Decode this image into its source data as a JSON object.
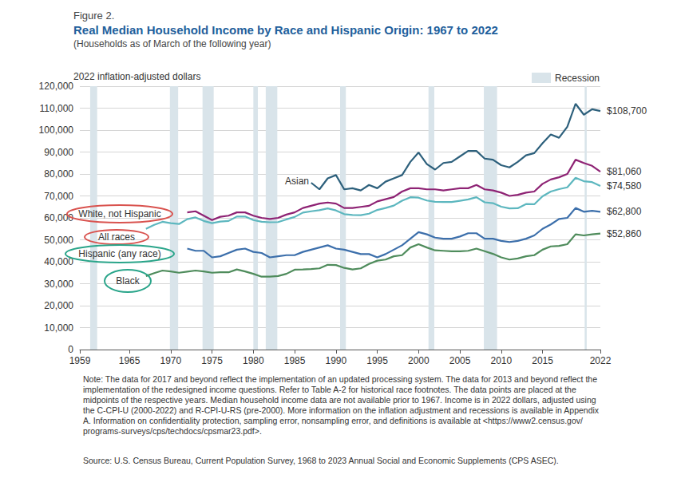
{
  "chart_data": {
    "type": "line",
    "figure_label": "Figure 2.",
    "title": "Real Median Household Income by Race and Hispanic Origin: 1967 to 2022",
    "subtitle": "(Households as of March of the following year)",
    "y_label": "2022 inflation-adjusted dollars",
    "x": [
      1967,
      1968,
      1969,
      1970,
      1971,
      1972,
      1973,
      1974,
      1975,
      1976,
      1977,
      1978,
      1979,
      1980,
      1981,
      1982,
      1983,
      1984,
      1985,
      1986,
      1987,
      1988,
      1989,
      1990,
      1991,
      1992,
      1993,
      1994,
      1995,
      1996,
      1997,
      1998,
      1999,
      2000,
      2001,
      2002,
      2003,
      2004,
      2005,
      2006,
      2007,
      2008,
      2009,
      2010,
      2011,
      2012,
      2013,
      2014,
      2015,
      2016,
      2017,
      2018,
      2019,
      2020,
      2021,
      2022
    ],
    "series": [
      {
        "name": "Asian",
        "color": "#2d607c",
        "values": [
          null,
          null,
          null,
          null,
          null,
          null,
          null,
          null,
          null,
          null,
          null,
          null,
          null,
          null,
          null,
          null,
          null,
          null,
          null,
          null,
          76000,
          73000,
          78000,
          79500,
          73000,
          73500,
          72500,
          75000,
          73500,
          76500,
          78000,
          79500,
          85500,
          89800,
          84500,
          82000,
          85000,
          85500,
          88000,
          90500,
          90500,
          87000,
          86500,
          84000,
          83000,
          85500,
          88500,
          89500,
          94000,
          98000,
          96500,
          101500,
          112000,
          107000,
          109500,
          108700
        ],
        "value_labels": [
          null,
          null,
          null,
          null,
          null,
          null,
          null,
          null,
          null,
          null,
          null,
          null,
          null,
          null,
          null,
          null,
          null,
          null,
          null,
          null,
          null,
          null,
          null,
          null,
          null,
          null,
          null,
          null,
          null,
          null,
          null,
          null,
          null,
          null,
          null,
          null,
          null,
          null,
          null,
          null,
          null,
          null,
          null,
          null,
          null,
          null,
          null,
          null,
          null,
          null,
          null,
          null,
          null,
          null,
          null,
          "$108,700"
        ]
      },
      {
        "name": "White, not Hispanic",
        "color": "#8e2374",
        "values": [
          null,
          null,
          null,
          null,
          null,
          62500,
          63000,
          61000,
          59000,
          60500,
          61000,
          62500,
          62500,
          61000,
          60000,
          59500,
          60000,
          61500,
          62500,
          64500,
          65500,
          66500,
          67000,
          66500,
          64500,
          64500,
          65000,
          65500,
          67500,
          68500,
          69500,
          72000,
          73500,
          73500,
          73000,
          73000,
          72500,
          73000,
          73500,
          73500,
          75000,
          73000,
          72500,
          71500,
          70000,
          70500,
          71500,
          72000,
          75500,
          77500,
          78500,
          80000,
          86500,
          85000,
          83700,
          81060
        ],
        "value_labels": [
          null,
          null,
          null,
          null,
          null,
          null,
          null,
          null,
          null,
          null,
          null,
          null,
          null,
          null,
          null,
          null,
          null,
          null,
          null,
          null,
          null,
          null,
          null,
          null,
          null,
          null,
          null,
          null,
          null,
          null,
          null,
          null,
          null,
          null,
          null,
          null,
          null,
          null,
          null,
          null,
          null,
          null,
          null,
          null,
          null,
          null,
          null,
          null,
          null,
          null,
          null,
          null,
          null,
          null,
          null,
          "$81,060"
        ]
      },
      {
        "name": "All races",
        "color": "#5db7bf",
        "values": [
          55000,
          56800,
          58200,
          57600,
          57200,
          59400,
          60200,
          58600,
          57600,
          58300,
          58600,
          60600,
          60600,
          59000,
          58200,
          58000,
          58100,
          59300,
          60400,
          62400,
          63000,
          63500,
          64300,
          63400,
          61700,
          61300,
          61200,
          61900,
          63600,
          64500,
          65600,
          67800,
          69400,
          69200,
          67900,
          67300,
          67200,
          67200,
          67800,
          68400,
          69400,
          67100,
          66700,
          65100,
          64300,
          64400,
          66300,
          66200,
          69800,
          72000,
          73100,
          73900,
          78300,
          76700,
          76300,
          74580
        ],
        "value_labels": [
          null,
          null,
          null,
          null,
          null,
          null,
          null,
          null,
          null,
          null,
          null,
          null,
          null,
          null,
          null,
          null,
          null,
          null,
          null,
          null,
          null,
          null,
          null,
          null,
          null,
          null,
          null,
          null,
          null,
          null,
          null,
          null,
          null,
          null,
          null,
          null,
          null,
          null,
          null,
          null,
          null,
          null,
          null,
          null,
          null,
          null,
          null,
          null,
          null,
          null,
          null,
          null,
          null,
          null,
          null,
          "$74,580"
        ]
      },
      {
        "name": "Hispanic (any race)",
        "color": "#3c6fab",
        "values": [
          null,
          null,
          null,
          null,
          null,
          46000,
          45000,
          45000,
          42000,
          42500,
          44000,
          45500,
          46000,
          44500,
          44000,
          42000,
          42500,
          43000,
          43000,
          44500,
          45500,
          46500,
          47500,
          46000,
          45500,
          44500,
          43500,
          43500,
          42000,
          43500,
          45500,
          47500,
          50500,
          53500,
          52500,
          51000,
          50500,
          50500,
          51500,
          53000,
          53000,
          50500,
          50500,
          49500,
          49000,
          49500,
          50500,
          52000,
          55000,
          57000,
          59500,
          60000,
          64500,
          62800,
          63200,
          62800
        ],
        "value_labels": [
          null,
          null,
          null,
          null,
          null,
          null,
          null,
          null,
          null,
          null,
          null,
          null,
          null,
          null,
          null,
          null,
          null,
          null,
          null,
          null,
          null,
          null,
          null,
          null,
          null,
          null,
          null,
          null,
          null,
          null,
          null,
          null,
          null,
          null,
          null,
          null,
          null,
          null,
          null,
          null,
          null,
          null,
          null,
          null,
          null,
          null,
          null,
          null,
          null,
          null,
          null,
          null,
          null,
          null,
          null,
          "$62,800"
        ]
      },
      {
        "name": "Black",
        "color": "#4f8c5c",
        "values": [
          33500,
          34800,
          36000,
          35600,
          35000,
          35500,
          36000,
          35600,
          35000,
          35200,
          35200,
          36500,
          35600,
          34500,
          33200,
          33200,
          33500,
          34500,
          36400,
          36500,
          36700,
          37000,
          38600,
          38500,
          37200,
          36500,
          37000,
          39000,
          40500,
          41000,
          42500,
          43000,
          46500,
          48000,
          46500,
          45200,
          45000,
          44800,
          44800,
          45000,
          46000,
          44800,
          43600,
          42000,
          41000,
          41500,
          42500,
          43000,
          45500,
          47000,
          47200,
          48000,
          52500,
          52000,
          52500,
          52860
        ],
        "value_labels": [
          null,
          null,
          null,
          null,
          null,
          null,
          null,
          null,
          null,
          null,
          null,
          null,
          null,
          null,
          null,
          null,
          null,
          null,
          null,
          null,
          null,
          null,
          null,
          null,
          null,
          null,
          null,
          null,
          null,
          null,
          null,
          null,
          null,
          null,
          null,
          null,
          null,
          null,
          null,
          null,
          null,
          null,
          null,
          null,
          null,
          null,
          null,
          null,
          null,
          null,
          null,
          null,
          null,
          null,
          null,
          "$52,860"
        ]
      }
    ],
    "xlim": [
      1959,
      2022
    ],
    "xticks": [
      1959,
      1965,
      1970,
      1975,
      1980,
      1985,
      1990,
      1995,
      2000,
      2005,
      2010,
      2015,
      2022
    ],
    "ylim": [
      0,
      120000
    ],
    "yticks": [
      0,
      {
        "value": 10000,
        "label": "10,000"
      },
      {
        "value": 20000,
        "label": "20,000"
      },
      {
        "value": 30000,
        "label": "30,000"
      },
      {
        "value": 40000,
        "label": "40,000"
      },
      {
        "value": 50000,
        "label": "50,000"
      },
      {
        "value": 60000,
        "label": "60,000"
      },
      {
        "value": 70000,
        "label": "70,000"
      },
      {
        "value": 80000,
        "label": "80,000"
      },
      {
        "value": 90000,
        "label": "90,000"
      },
      {
        "value": 100000,
        "label": "100,000"
      },
      {
        "value": 110000,
        "label": "110,000"
      },
      {
        "value": 120000,
        "label": "120,000"
      }
    ],
    "grid": true,
    "legend": "top-right",
    "recessions": {
      "label": "Recession",
      "periods": [
        [
          1960.25,
          1961.1
        ],
        [
          1969.9,
          1970.9
        ],
        [
          1973.85,
          1975.2
        ],
        [
          1980.0,
          1980.55
        ],
        [
          1981.5,
          1982.9
        ],
        [
          1990.5,
          1991.2
        ],
        [
          2001.2,
          2001.9
        ],
        [
          2007.9,
          2009.5
        ],
        [
          2020.1,
          2020.35
        ]
      ]
    },
    "note": "Note: The data for 2017 and beyond reflect the implementation of an updated processing system. The data for 2013 and beyond reflect the implementation of the redesigned income questions. Refer to Table A-2 for historical race footnotes. The data points are placed at the midpoints of the respective years. Median household income data are not available prior to 1967. Income is in 2022 dollars, adjusted using the C-CPI-U (2000-2022) and R-CPI-U-RS (pre-2000). More information on the inflation adjustment and recessions is available in Appendix A. Information on confidentiality protection, sampling error, nonsampling error, and definitions is available at <https://www2.census.gov/programs-surveys/cps/techdocs/cpsmar23.pdf>.",
    "source": "Source: U.S. Census Bureau, Current Population Survey, 1968 to 2023 Annual Social and Economic Supplements (CPS ASEC)."
  }
}
